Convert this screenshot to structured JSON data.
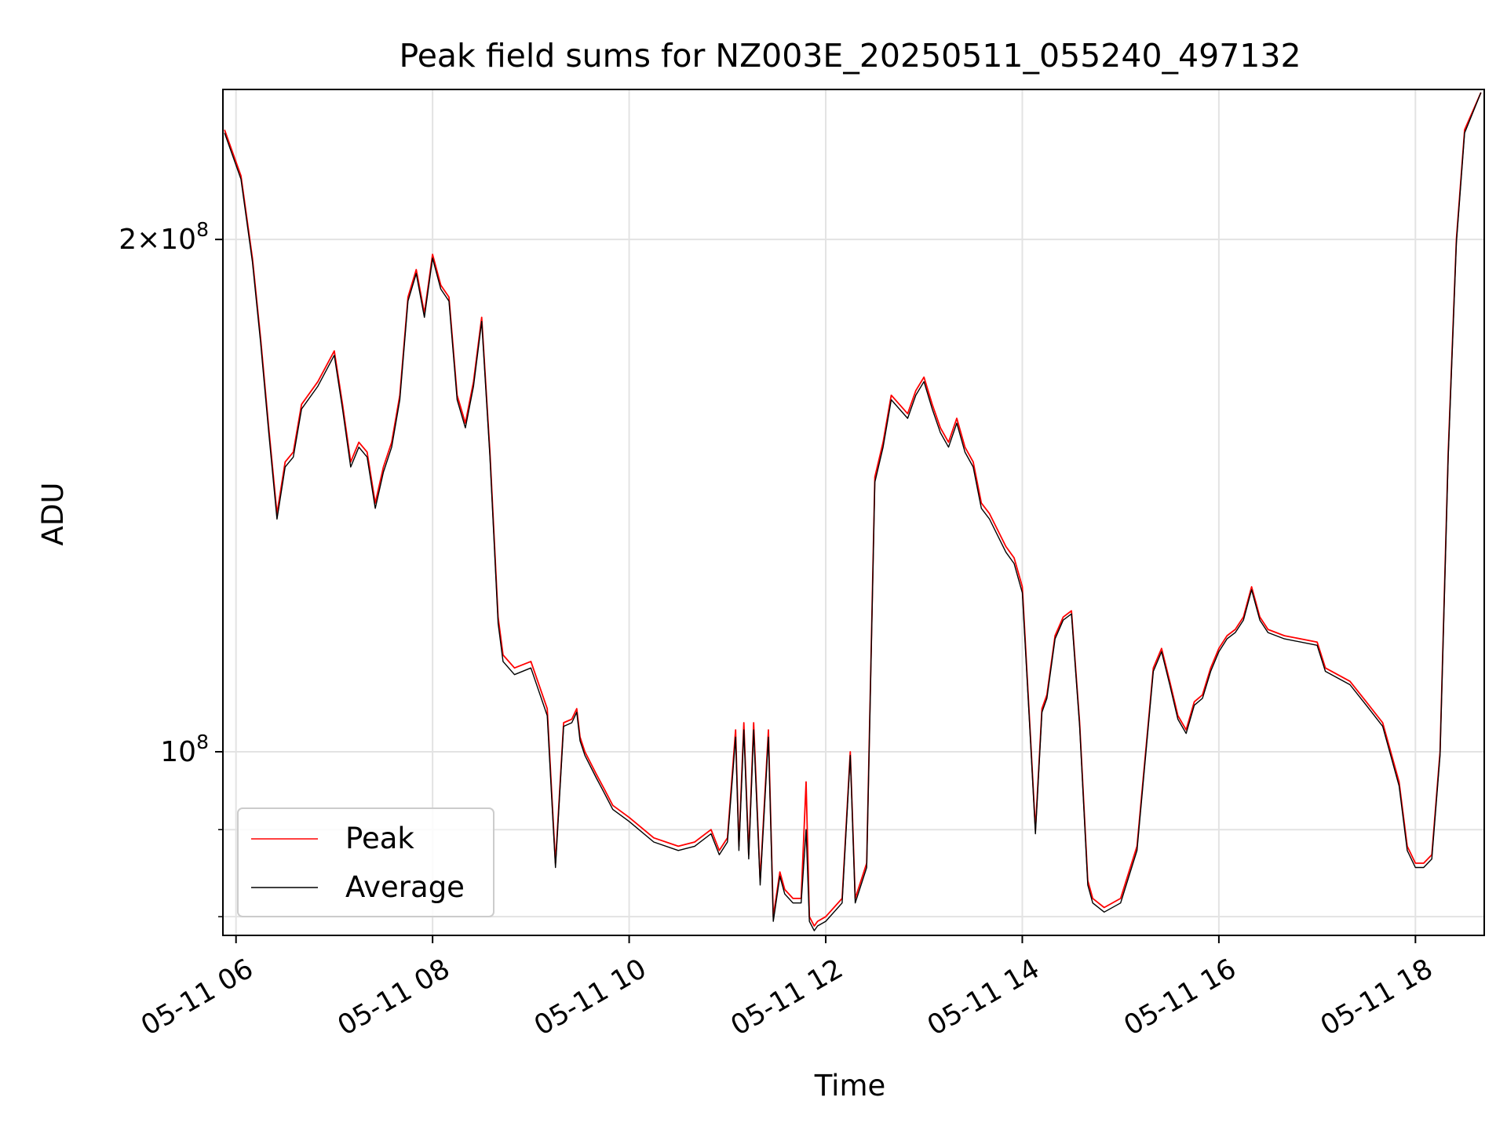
{
  "chart_data": {
    "type": "line",
    "title": "Peak field sums for NZ003E_20250511_055240_497132",
    "xlabel": "Time",
    "ylabel": "ADU",
    "yscale": "log",
    "grid": true,
    "legend_position": "lower-left",
    "xlim": [
      "2025-05-11 05:52",
      "2025-05-11 18:42"
    ],
    "ylim": [
      78000000,
      245000000
    ],
    "x_ticks": [
      "05-11 06",
      "05-11 08",
      "05-11 10",
      "05-11 12",
      "05-11 14",
      "05-11 16",
      "05-11 18"
    ],
    "x_tick_times": [
      "2025-05-11 06:00",
      "2025-05-11 08:00",
      "2025-05-11 10:00",
      "2025-05-11 12:00",
      "2025-05-11 14:00",
      "2025-05-11 16:00",
      "2025-05-11 18:00"
    ],
    "y_ticks": [
      {
        "label_base": "10",
        "label_exp": "8",
        "label_prefix": "",
        "value": 100000000
      },
      {
        "label_base": "10",
        "label_exp": "8",
        "label_prefix": "2×",
        "value": 200000000
      }
    ],
    "y_minor_ticks": [
      80000000,
      90000000
    ],
    "x": [
      "05:53",
      "06:03",
      "06:10",
      "06:15",
      "06:20",
      "06:25",
      "06:30",
      "06:35",
      "06:40",
      "06:50",
      "07:00",
      "07:05",
      "07:10",
      "07:15",
      "07:20",
      "07:25",
      "07:30",
      "07:35",
      "07:40",
      "07:45",
      "07:50",
      "07:55",
      "08:00",
      "08:05",
      "08:10",
      "08:15",
      "08:20",
      "08:25",
      "08:30",
      "08:35",
      "08:40",
      "08:43",
      "08:50",
      "09:00",
      "09:10",
      "09:15",
      "09:20",
      "09:25",
      "09:28",
      "09:30",
      "09:33",
      "09:40",
      "09:45",
      "09:50",
      "10:00",
      "10:15",
      "10:30",
      "10:40",
      "10:50",
      "10:55",
      "11:00",
      "11:05",
      "11:07",
      "11:10",
      "11:13",
      "11:16",
      "11:20",
      "11:25",
      "11:28",
      "11:32",
      "11:35",
      "11:40",
      "11:45",
      "11:48",
      "11:50",
      "11:53",
      "11:55",
      "12:00",
      "12:10",
      "12:15",
      "12:18",
      "12:25",
      "12:30",
      "12:35",
      "12:40",
      "12:50",
      "12:55",
      "13:00",
      "13:05",
      "13:10",
      "13:15",
      "13:20",
      "13:25",
      "13:30",
      "13:35",
      "13:40",
      "13:50",
      "13:55",
      "14:00",
      "14:05",
      "14:08",
      "14:12",
      "14:15",
      "14:20",
      "14:25",
      "14:30",
      "14:35",
      "14:40",
      "14:43",
      "14:50",
      "15:00",
      "15:10",
      "15:20",
      "15:25",
      "15:30",
      "15:35",
      "15:40",
      "15:45",
      "15:50",
      "15:55",
      "16:00",
      "16:05",
      "16:10",
      "16:15",
      "16:20",
      "16:25",
      "16:30",
      "16:40",
      "17:00",
      "17:05",
      "17:20",
      "17:30",
      "17:40",
      "17:50",
      "17:55",
      "18:00",
      "18:05",
      "18:10",
      "18:15",
      "18:20",
      "18:25",
      "18:30",
      "18:40"
    ],
    "series": [
      {
        "name": "Peak",
        "color": "#ff0000",
        "values": [
          232000000,
          218000000,
          195000000,
          175000000,
          155000000,
          138000000,
          148000000,
          150000000,
          160000000,
          165000000,
          172000000,
          160000000,
          148000000,
          152000000,
          150000000,
          140000000,
          147000000,
          152000000,
          162000000,
          185000000,
          192000000,
          181000000,
          196000000,
          188000000,
          185000000,
          162000000,
          156000000,
          165000000,
          180000000,
          150000000,
          120000000,
          114000000,
          112000000,
          113000000,
          106000000,
          86000000,
          104000000,
          104500000,
          106000000,
          102000000,
          100000000,
          97000000,
          95000000,
          93000000,
          91500000,
          89000000,
          88000000,
          88500000,
          90000000,
          87500000,
          89000000,
          103000000,
          88000000,
          104000000,
          87000000,
          104000000,
          84000000,
          103000000,
          80000000,
          85000000,
          83000000,
          82000000,
          82000000,
          96000000,
          80000000,
          79000000,
          79500000,
          80000000,
          82000000,
          100000000,
          82000000,
          86000000,
          145000000,
          152000000,
          162000000,
          158000000,
          163000000,
          166000000,
          160000000,
          155000000,
          152000000,
          157000000,
          151000000,
          148000000,
          140000000,
          138000000,
          132000000,
          130000000,
          125000000,
          102000000,
          90000000,
          106000000,
          108000000,
          117000000,
          120000000,
          121000000,
          104000000,
          84000000,
          82000000,
          81000000,
          82000000,
          88000000,
          112000000,
          115000000,
          110000000,
          105000000,
          103000000,
          107000000,
          108000000,
          112000000,
          115000000,
          117000000,
          118000000,
          120000000,
          125000000,
          120000000,
          118000000,
          117000000,
          116000000,
          112000000,
          110000000,
          107000000,
          104000000,
          96000000,
          88000000,
          86000000,
          86000000,
          87000000,
          100000000,
          150000000,
          200000000,
          232000000,
          244000000
        ]
      },
      {
        "name": "Average",
        "color": "#000000",
        "values": [
          231000000,
          217000000,
          194000000,
          174000000,
          154000000,
          137000000,
          147000000,
          149000000,
          159000000,
          164000000,
          171000000,
          159000000,
          147000000,
          151000000,
          149000000,
          139000000,
          146000000,
          151000000,
          161000000,
          184000000,
          191000000,
          180000000,
          195000000,
          187000000,
          184000000,
          161000000,
          155000000,
          164000000,
          179000000,
          149000000,
          119000000,
          113000000,
          111000000,
          112000000,
          105000000,
          85500000,
          103500000,
          104000000,
          105500000,
          101500000,
          99500000,
          96500000,
          94500000,
          92500000,
          91000000,
          88500000,
          87500000,
          88000000,
          89500000,
          87000000,
          88500000,
          102000000,
          87500000,
          103000000,
          86500000,
          103000000,
          83500000,
          102000000,
          79500000,
          84500000,
          82500000,
          81500000,
          81500000,
          90000000,
          79500000,
          78500000,
          79000000,
          79500000,
          81500000,
          99500000,
          81500000,
          85500000,
          144000000,
          151000000,
          161000000,
          157000000,
          162000000,
          165000000,
          159000000,
          154000000,
          151000000,
          156000000,
          150000000,
          147000000,
          139000000,
          137000000,
          131000000,
          129000000,
          124000000,
          101500000,
          89500000,
          105500000,
          107500000,
          116500000,
          119500000,
          120500000,
          103500000,
          83500000,
          81500000,
          80500000,
          81500000,
          87500000,
          111500000,
          114500000,
          109500000,
          104500000,
          102500000,
          106500000,
          107500000,
          111500000,
          114500000,
          116500000,
          117500000,
          119500000,
          124500000,
          119500000,
          117500000,
          116500000,
          115500000,
          111500000,
          109500000,
          106500000,
          103500000,
          95500000,
          87500000,
          85500000,
          85500000,
          86500000,
          99500000,
          149000000,
          199000000,
          231000000,
          244000000
        ]
      }
    ]
  }
}
